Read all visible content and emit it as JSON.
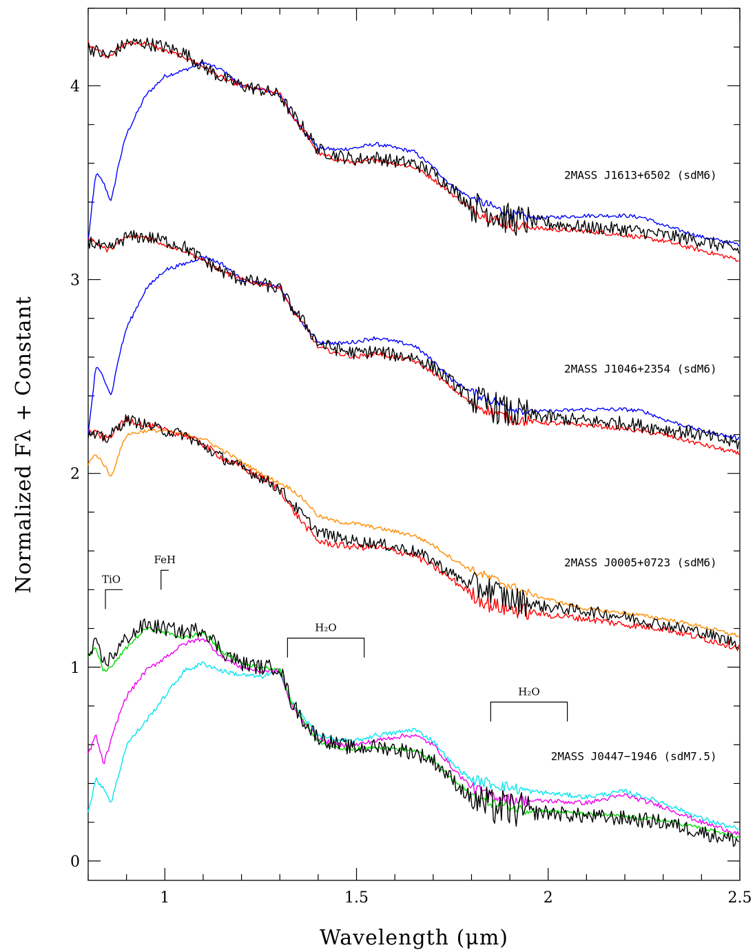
{
  "chart_data": {
    "type": "line",
    "title": "",
    "xlabel": "Wavelength (μm)",
    "ylabel": "Normalized Fλ + Constant",
    "xlim": [
      0.8,
      2.5
    ],
    "ylim": [
      -0.1,
      4.4
    ],
    "x_ticks": [
      1,
      1.5,
      2,
      2.5
    ],
    "x_tick_labels": [
      "1",
      "1.5",
      "2",
      "2.5"
    ],
    "y_ticks": [
      0,
      1,
      2,
      3,
      4
    ],
    "y_tick_labels": [
      "0",
      "1",
      "2",
      "3",
      "4"
    ],
    "grid": false,
    "legend": "none",
    "colors": {
      "black": "#000000",
      "red": "#ff0000",
      "blue": "#0000ff",
      "orange": "#ff8c00",
      "green": "#00dd00",
      "magenta": "#ee00ee",
      "cyan": "#00e5ee"
    },
    "annotations": [
      {
        "text": "2MASS J1613+6502 (sdM6)",
        "x": 2.44,
        "y": 3.52
      },
      {
        "text": "2MASS J1046+2354 (sdM6)",
        "x": 2.44,
        "y": 2.52
      },
      {
        "text": "2MASS J0005+0723 (sdM6)",
        "x": 2.44,
        "y": 1.52
      },
      {
        "text": "2MASS J0447−1946 (sdM7.5)",
        "x": 2.44,
        "y": 0.52
      }
    ],
    "bands": [
      {
        "label": "TiO",
        "x0": 0.845,
        "x1": 0.89,
        "y": 1.4,
        "style": "step"
      },
      {
        "label": "FeH",
        "x0": 0.99,
        "x1": 1.01,
        "y": 1.5,
        "style": "step"
      },
      {
        "label": "H₂O",
        "x0": 1.32,
        "x1": 1.52,
        "y": 1.15,
        "style": "bracket"
      },
      {
        "label": "H₂O",
        "x0": 1.85,
        "x1": 2.05,
        "y": 0.82,
        "style": "bracket"
      }
    ],
    "series": [
      {
        "group": "J1613",
        "color": "blue",
        "noise": 0.01,
        "x": [
          0.8,
          0.82,
          0.84,
          0.86,
          0.88,
          0.9,
          0.95,
          1.0,
          1.05,
          1.1,
          1.15,
          1.2,
          1.25,
          1.3,
          1.33,
          1.37,
          1.4,
          1.45,
          1.5,
          1.55,
          1.6,
          1.65,
          1.7,
          1.75,
          1.8,
          1.85,
          1.9,
          1.95,
          2.0,
          2.1,
          2.2,
          2.25,
          2.3,
          2.4,
          2.5
        ],
        "y": [
          3.2,
          3.55,
          3.5,
          3.4,
          3.6,
          3.75,
          3.95,
          4.05,
          4.08,
          4.12,
          4.08,
          4.0,
          3.98,
          3.96,
          3.85,
          3.75,
          3.68,
          3.67,
          3.68,
          3.7,
          3.68,
          3.66,
          3.58,
          3.48,
          3.42,
          3.38,
          3.34,
          3.32,
          3.32,
          3.33,
          3.33,
          3.32,
          3.28,
          3.22,
          3.18
        ]
      },
      {
        "group": "J1613",
        "color": "red",
        "noise": 0.012,
        "x": [
          0.8,
          0.85,
          0.9,
          0.95,
          1.0,
          1.05,
          1.1,
          1.15,
          1.2,
          1.25,
          1.3,
          1.33,
          1.37,
          1.4,
          1.45,
          1.5,
          1.55,
          1.6,
          1.65,
          1.7,
          1.75,
          1.8,
          1.85,
          1.9,
          2.0,
          2.1,
          2.2,
          2.3,
          2.4,
          2.5
        ],
        "y": [
          4.22,
          4.15,
          4.22,
          4.22,
          4.18,
          4.15,
          4.1,
          4.04,
          4.0,
          3.98,
          3.96,
          3.85,
          3.75,
          3.65,
          3.62,
          3.6,
          3.62,
          3.6,
          3.58,
          3.52,
          3.44,
          3.36,
          3.32,
          3.28,
          3.26,
          3.25,
          3.23,
          3.2,
          3.15,
          3.1
        ]
      },
      {
        "group": "J1613",
        "color": "black",
        "noise": 0.035,
        "x": [
          0.8,
          0.85,
          0.9,
          0.95,
          1.0,
          1.05,
          1.1,
          1.15,
          1.2,
          1.25,
          1.3,
          1.33,
          1.37,
          1.4,
          1.45,
          1.5,
          1.55,
          1.6,
          1.65,
          1.7,
          1.75,
          1.8,
          1.85,
          1.9,
          2.0,
          2.1,
          2.2,
          2.3,
          2.4,
          2.5
        ],
        "y": [
          4.2,
          4.15,
          4.22,
          4.22,
          4.2,
          4.17,
          4.1,
          4.04,
          4.0,
          3.98,
          3.95,
          3.86,
          3.76,
          3.67,
          3.64,
          3.62,
          3.63,
          3.61,
          3.6,
          3.55,
          3.47,
          3.38,
          3.35,
          3.31,
          3.29,
          3.27,
          3.26,
          3.23,
          3.2,
          3.15
        ]
      },
      {
        "group": "J1046",
        "color": "blue",
        "noise": 0.01,
        "x": [
          0.8,
          0.82,
          0.84,
          0.86,
          0.88,
          0.9,
          0.95,
          1.0,
          1.05,
          1.1,
          1.15,
          1.2,
          1.25,
          1.3,
          1.33,
          1.37,
          1.4,
          1.45,
          1.5,
          1.55,
          1.6,
          1.65,
          1.7,
          1.75,
          1.8,
          1.85,
          1.9,
          1.95,
          2.0,
          2.1,
          2.2,
          2.25,
          2.3,
          2.4,
          2.5
        ],
        "y": [
          2.2,
          2.55,
          2.5,
          2.4,
          2.6,
          2.75,
          2.95,
          3.05,
          3.08,
          3.12,
          3.08,
          3.0,
          2.98,
          2.96,
          2.85,
          2.75,
          2.68,
          2.67,
          2.68,
          2.7,
          2.68,
          2.66,
          2.58,
          2.48,
          2.42,
          2.38,
          2.34,
          2.32,
          2.32,
          2.33,
          2.33,
          2.32,
          2.28,
          2.22,
          2.18
        ]
      },
      {
        "group": "J1046",
        "color": "red",
        "noise": 0.012,
        "x": [
          0.8,
          0.85,
          0.9,
          0.95,
          1.0,
          1.05,
          1.1,
          1.15,
          1.2,
          1.25,
          1.3,
          1.33,
          1.37,
          1.4,
          1.45,
          1.5,
          1.55,
          1.6,
          1.65,
          1.7,
          1.75,
          1.8,
          1.85,
          1.9,
          2.0,
          2.1,
          2.2,
          2.3,
          2.4,
          2.5
        ],
        "y": [
          3.22,
          3.15,
          3.22,
          3.22,
          3.18,
          3.15,
          3.1,
          3.04,
          3.0,
          2.98,
          2.96,
          2.85,
          2.75,
          2.65,
          2.62,
          2.6,
          2.62,
          2.6,
          2.58,
          2.52,
          2.44,
          2.36,
          2.32,
          2.28,
          2.26,
          2.25,
          2.23,
          2.2,
          2.15,
          2.1
        ]
      },
      {
        "group": "J1046",
        "color": "black",
        "noise": 0.035,
        "x": [
          0.8,
          0.85,
          0.9,
          0.95,
          1.0,
          1.05,
          1.1,
          1.15,
          1.2,
          1.25,
          1.3,
          1.33,
          1.37,
          1.4,
          1.45,
          1.5,
          1.55,
          1.6,
          1.65,
          1.7,
          1.75,
          1.8,
          1.85,
          1.9,
          2.0,
          2.1,
          2.2,
          2.3,
          2.4,
          2.5
        ],
        "y": [
          3.2,
          3.15,
          3.22,
          3.22,
          3.2,
          3.17,
          3.1,
          3.04,
          3.0,
          2.98,
          2.95,
          2.86,
          2.76,
          2.67,
          2.64,
          2.62,
          2.63,
          2.61,
          2.6,
          2.55,
          2.47,
          2.38,
          2.35,
          2.31,
          2.29,
          2.27,
          2.26,
          2.23,
          2.2,
          2.15
        ]
      },
      {
        "group": "J0005",
        "color": "orange",
        "noise": 0.01,
        "x": [
          0.8,
          0.82,
          0.84,
          0.86,
          0.88,
          0.9,
          0.95,
          1.0,
          1.05,
          1.1,
          1.15,
          1.2,
          1.25,
          1.3,
          1.33,
          1.37,
          1.4,
          1.45,
          1.5,
          1.55,
          1.6,
          1.65,
          1.7,
          1.75,
          1.8,
          1.85,
          1.9,
          1.95,
          2.0,
          2.1,
          2.2,
          2.3,
          2.4,
          2.5
        ],
        "y": [
          2.05,
          2.1,
          2.05,
          1.98,
          2.1,
          2.2,
          2.22,
          2.22,
          2.2,
          2.18,
          2.12,
          2.06,
          2.0,
          1.95,
          1.92,
          1.85,
          1.78,
          1.75,
          1.74,
          1.72,
          1.7,
          1.68,
          1.63,
          1.56,
          1.5,
          1.46,
          1.42,
          1.38,
          1.35,
          1.3,
          1.28,
          1.25,
          1.21,
          1.16
        ]
      },
      {
        "group": "J0005",
        "color": "red",
        "noise": 0.018,
        "x": [
          0.8,
          0.85,
          0.9,
          0.95,
          1.0,
          1.05,
          1.1,
          1.15,
          1.2,
          1.25,
          1.3,
          1.33,
          1.37,
          1.4,
          1.45,
          1.5,
          1.55,
          1.6,
          1.65,
          1.7,
          1.75,
          1.8,
          1.85,
          1.9,
          2.0,
          2.1,
          2.2,
          2.3,
          2.4,
          2.5
        ],
        "y": [
          2.22,
          2.18,
          2.28,
          2.25,
          2.22,
          2.2,
          2.15,
          2.08,
          2.03,
          1.98,
          1.92,
          1.82,
          1.72,
          1.65,
          1.63,
          1.62,
          1.62,
          1.6,
          1.58,
          1.52,
          1.45,
          1.38,
          1.32,
          1.3,
          1.27,
          1.25,
          1.22,
          1.2,
          1.15,
          1.1
        ]
      },
      {
        "group": "J0005",
        "color": "black",
        "noise": 0.03,
        "x": [
          0.8,
          0.85,
          0.9,
          0.95,
          1.0,
          1.05,
          1.1,
          1.15,
          1.2,
          1.25,
          1.3,
          1.33,
          1.37,
          1.4,
          1.45,
          1.5,
          1.55,
          1.6,
          1.65,
          1.7,
          1.75,
          1.8,
          1.85,
          1.9,
          2.0,
          2.1,
          2.2,
          2.3,
          2.4,
          2.5
        ],
        "y": [
          2.2,
          2.18,
          2.28,
          2.25,
          2.22,
          2.2,
          2.14,
          2.08,
          2.03,
          1.98,
          1.92,
          1.85,
          1.76,
          1.7,
          1.67,
          1.65,
          1.64,
          1.62,
          1.6,
          1.55,
          1.48,
          1.42,
          1.4,
          1.35,
          1.31,
          1.29,
          1.26,
          1.22,
          1.18,
          1.12
        ]
      },
      {
        "group": "J0447",
        "color": "cyan",
        "noise": 0.012,
        "x": [
          0.8,
          0.82,
          0.84,
          0.86,
          0.88,
          0.9,
          0.95,
          1.0,
          1.05,
          1.1,
          1.15,
          1.2,
          1.25,
          1.3,
          1.33,
          1.37,
          1.4,
          1.45,
          1.5,
          1.55,
          1.6,
          1.65,
          1.7,
          1.75,
          1.8,
          1.85,
          1.9,
          1.95,
          2.0,
          2.1,
          2.2,
          2.3,
          2.4,
          2.5
        ],
        "y": [
          0.25,
          0.42,
          0.38,
          0.3,
          0.45,
          0.6,
          0.72,
          0.85,
          0.98,
          1.02,
          0.98,
          0.96,
          0.95,
          0.98,
          0.82,
          0.72,
          0.65,
          0.62,
          0.62,
          0.65,
          0.66,
          0.68,
          0.62,
          0.5,
          0.42,
          0.4,
          0.38,
          0.36,
          0.35,
          0.33,
          0.36,
          0.3,
          0.22,
          0.16
        ]
      },
      {
        "group": "J0447",
        "color": "magenta",
        "noise": 0.012,
        "x": [
          0.8,
          0.82,
          0.84,
          0.86,
          0.88,
          0.9,
          0.95,
          1.0,
          1.05,
          1.1,
          1.15,
          1.2,
          1.25,
          1.3,
          1.33,
          1.37,
          1.4,
          1.45,
          1.5,
          1.55,
          1.6,
          1.65,
          1.7,
          1.75,
          1.8,
          1.85,
          1.9,
          1.95,
          2.0,
          2.1,
          2.2,
          2.3,
          2.4,
          2.5
        ],
        "y": [
          0.55,
          0.65,
          0.5,
          0.62,
          0.75,
          0.85,
          0.98,
          1.05,
          1.12,
          1.15,
          1.05,
          1.0,
          0.98,
          0.98,
          0.8,
          0.7,
          0.63,
          0.6,
          0.6,
          0.62,
          0.64,
          0.65,
          0.6,
          0.48,
          0.38,
          0.34,
          0.32,
          0.31,
          0.31,
          0.3,
          0.34,
          0.28,
          0.2,
          0.14
        ]
      },
      {
        "group": "J0447",
        "color": "green",
        "noise": 0.01,
        "x": [
          0.8,
          0.82,
          0.84,
          0.86,
          0.88,
          0.9,
          0.95,
          1.0,
          1.05,
          1.1,
          1.15,
          1.2,
          1.25,
          1.3,
          1.33,
          1.37,
          1.4,
          1.45,
          1.5,
          1.55,
          1.6,
          1.65,
          1.7,
          1.75,
          1.8,
          1.85,
          1.9,
          1.95,
          2.0,
          2.1,
          2.2,
          2.3,
          2.4,
          2.5
        ],
        "y": [
          1.05,
          1.1,
          0.98,
          1.0,
          1.05,
          1.1,
          1.2,
          1.18,
          1.15,
          1.18,
          1.08,
          1.02,
          1.0,
          0.99,
          0.82,
          0.7,
          0.62,
          0.58,
          0.58,
          0.59,
          0.58,
          0.57,
          0.52,
          0.42,
          0.34,
          0.3,
          0.28,
          0.26,
          0.26,
          0.24,
          0.23,
          0.21,
          0.17,
          0.12
        ]
      },
      {
        "group": "J0447",
        "color": "black",
        "noise": 0.04,
        "x": [
          0.8,
          0.82,
          0.84,
          0.86,
          0.88,
          0.9,
          0.95,
          1.0,
          1.05,
          1.1,
          1.15,
          1.2,
          1.25,
          1.3,
          1.33,
          1.37,
          1.4,
          1.45,
          1.5,
          1.55,
          1.6,
          1.65,
          1.7,
          1.75,
          1.8,
          1.85,
          1.9,
          1.95,
          2.0,
          2.1,
          2.2,
          2.3,
          2.4,
          2.5
        ],
        "y": [
          1.05,
          1.12,
          1.02,
          1.05,
          1.1,
          1.15,
          1.22,
          1.2,
          1.18,
          1.2,
          1.08,
          1.02,
          1.0,
          1.0,
          0.82,
          0.7,
          0.64,
          0.6,
          0.58,
          0.59,
          0.58,
          0.56,
          0.52,
          0.42,
          0.32,
          0.28,
          0.27,
          0.25,
          0.25,
          0.23,
          0.22,
          0.2,
          0.15,
          0.1
        ]
      }
    ]
  }
}
